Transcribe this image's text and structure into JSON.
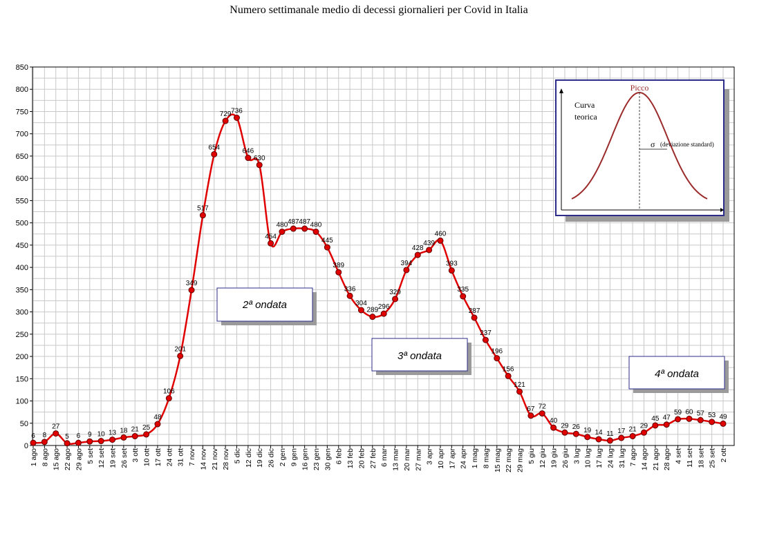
{
  "chart_data": {
    "type": "line",
    "title": "Numero settimanale medio di decessi giornalieri per Covid in Italia",
    "xlabel": "",
    "ylabel": "",
    "ylim": [
      0,
      850
    ],
    "yticks": [
      0,
      50,
      100,
      150,
      200,
      250,
      300,
      350,
      400,
      450,
      500,
      550,
      600,
      650,
      700,
      750,
      800,
      850
    ],
    "grid": true,
    "colors": {
      "line": "#e00000",
      "marker_fill": "#e00000",
      "marker_edge": "#600000",
      "grid": "#c8c8c8"
    },
    "categories": [
      "1 ago",
      "8 ago",
      "15 ago",
      "22 ago",
      "29 ago",
      "5 set",
      "12 set",
      "19 set",
      "26 set",
      "3 ott",
      "10 ott",
      "17 ott",
      "24 ott",
      "31 ott",
      "7 nov",
      "14 nov",
      "21 nov",
      "28 nov",
      "5 dic",
      "12 dic",
      "19 dic",
      "26 dic",
      "2 gen",
      "9 gen",
      "16 gen",
      "23 gen",
      "30 gen",
      "6 feb",
      "13 feb",
      "20 feb",
      "27 feb",
      "6 mar",
      "13 mar",
      "20 mar",
      "27 mar",
      "3 apr",
      "10 apr",
      "17 apr",
      "24 apr",
      "1 mag",
      "8 mag",
      "15 mag",
      "22 mag",
      "29 mag",
      "5 giu",
      "12 giu",
      "19 giu",
      "26 giu",
      "3 lug",
      "10 lug",
      "17 lug",
      "24 lug",
      "31 lug",
      "7 ago",
      "14 ago",
      "21 ago",
      "28 ago",
      "4 set",
      "11 set",
      "18 set",
      "25 set",
      "2 ott"
    ],
    "series": [
      {
        "values": [
          6,
          8,
          27,
          5,
          6,
          9,
          10,
          13,
          18,
          21,
          25,
          48,
          106,
          201,
          349,
          517,
          654,
          729,
          736,
          646,
          630,
          454,
          480,
          487,
          487,
          480,
          445,
          389,
          336,
          304,
          289,
          296,
          329,
          394,
          428,
          439,
          460,
          393,
          335,
          287,
          237,
          196,
          156,
          121,
          67,
          72,
          40,
          29,
          26,
          19,
          14,
          11,
          17,
          21,
          29,
          45,
          47,
          59,
          60,
          57,
          53,
          49
        ]
      }
    ],
    "annotations": [
      {
        "text": "2ª ondata"
      },
      {
        "text": "3ª ondata"
      },
      {
        "text": "4ª ondata"
      }
    ],
    "inset": {
      "label_curve": [
        "Curva",
        "teorica"
      ],
      "label_peak": "Picco",
      "label_sigma": "σ",
      "label_sigma_note": "(deviazione standard)"
    }
  }
}
